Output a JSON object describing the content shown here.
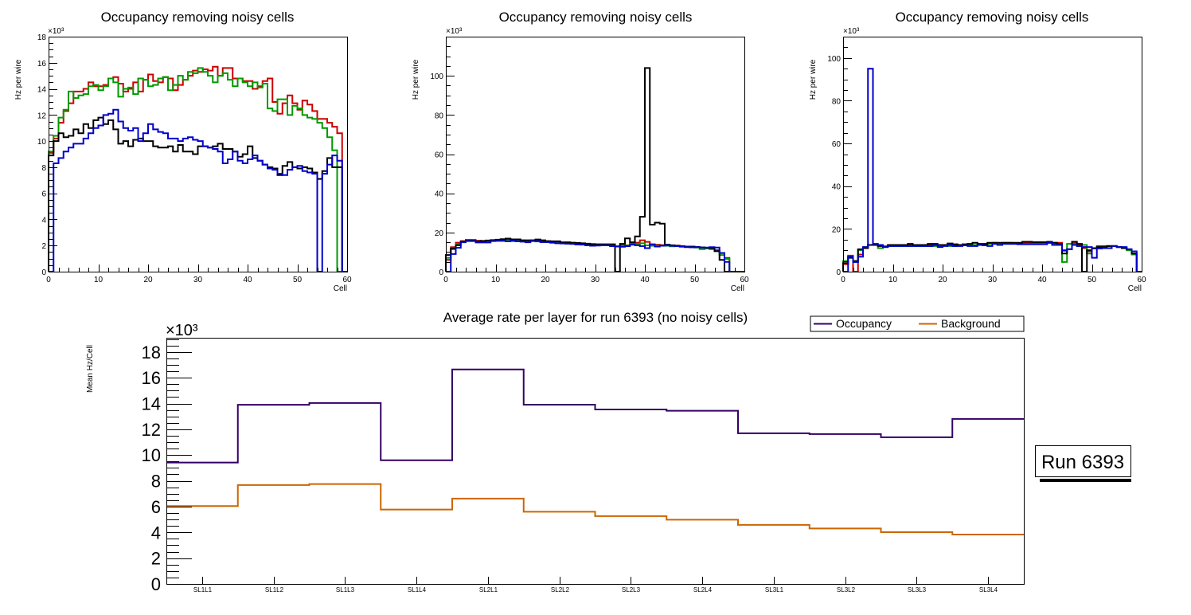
{
  "chart_data": [
    {
      "type": "line",
      "style": "step-histogram",
      "title": "Occupancy removing noisy cells",
      "xlabel": "Cell",
      "ylabel": "Hz per wire",
      "y_multiplier": "×10³",
      "xlim": [
        0,
        60
      ],
      "ylim": [
        0,
        18
      ],
      "x_ticks": [
        "0",
        "10",
        "20",
        "30",
        "40",
        "50",
        "60"
      ],
      "y_ticks": [
        "0",
        "2",
        "4",
        "6",
        "8",
        "10",
        "12",
        "14",
        "16",
        "18"
      ],
      "y_tick_values": [
        0,
        2,
        4,
        6,
        8,
        10,
        12,
        14,
        16,
        18
      ],
      "x_tick_values": [
        0,
        10,
        20,
        30,
        40,
        50,
        60
      ],
      "bins": 60,
      "series": [
        {
          "name": "red",
          "color": "#cc0000",
          "values": [
            9.1,
            10.2,
            11.4,
            12.3,
            12.9,
            13.8,
            13.8,
            14.0,
            14.5,
            14.2,
            14.2,
            14.3,
            14.8,
            14.9,
            14.4,
            13.8,
            14.0,
            14.5,
            13.8,
            14.7,
            15.1,
            14.6,
            14.5,
            14.9,
            14.8,
            13.9,
            14.3,
            14.7,
            15.0,
            15.4,
            15.3,
            15.5,
            15.4,
            15.7,
            15.0,
            15.6,
            15.6,
            14.8,
            14.8,
            14.6,
            14.6,
            14.0,
            14.2,
            14.6,
            14.8,
            13.0,
            12.1,
            12.9,
            13.5,
            12.9,
            12.4,
            13.1,
            12.8,
            12.3,
            11.7,
            11.7,
            11.4,
            11.1,
            10.6,
            0
          ]
        },
        {
          "name": "green",
          "color": "#009900",
          "values": [
            9.2,
            10.4,
            11.8,
            12.4,
            13.8,
            13.3,
            13.5,
            13.6,
            14.2,
            14.3,
            13.9,
            14.2,
            14.8,
            14.5,
            13.4,
            14.0,
            14.1,
            13.6,
            14.8,
            14.7,
            14.2,
            14.3,
            14.8,
            14.9,
            13.9,
            14.3,
            15.0,
            14.7,
            15.3,
            15.2,
            15.6,
            15.3,
            15.0,
            14.5,
            15.0,
            15.2,
            14.7,
            14.2,
            14.8,
            14.5,
            14.2,
            14.5,
            14.1,
            14.4,
            12.5,
            12.3,
            13.2,
            13.2,
            12.0,
            12.7,
            12.5,
            12.0,
            11.8,
            11.7,
            11.4,
            11.0,
            10.3,
            9.3,
            0,
            0
          ]
        },
        {
          "name": "black",
          "color": "#000000",
          "values": [
            8.9,
            10.0,
            10.6,
            10.3,
            10.4,
            10.9,
            10.6,
            11.3,
            11.0,
            11.6,
            11.8,
            11.3,
            11.6,
            10.9,
            9.8,
            10.0,
            9.6,
            10.1,
            10.2,
            10.0,
            10.0,
            9.6,
            9.5,
            9.5,
            9.6,
            9.2,
            9.7,
            9.2,
            9.2,
            9.0,
            9.6,
            9.6,
            9.5,
            9.6,
            9.8,
            9.4,
            9.4,
            9.2,
            8.8,
            9.0,
            9.6,
            8.7,
            8.5,
            8.2,
            8.0,
            7.9,
            7.4,
            8.1,
            8.4,
            8.0,
            7.9,
            8.0,
            7.9,
            7.6,
            7.1,
            7.7,
            8.7,
            8.0,
            8.0,
            0
          ]
        },
        {
          "name": "blue",
          "color": "#0000cc",
          "values": [
            0,
            8.3,
            8.7,
            9.2,
            9.5,
            9.8,
            9.8,
            10.2,
            10.6,
            11.0,
            11.2,
            12.0,
            12.1,
            12.4,
            11.5,
            11.0,
            10.8,
            11.0,
            10.0,
            10.6,
            11.3,
            10.9,
            10.7,
            10.6,
            10.2,
            10.2,
            10.0,
            10.2,
            10.3,
            10.1,
            10.0,
            9.6,
            9.5,
            9.4,
            9.2,
            8.3,
            8.6,
            9.2,
            8.5,
            8.3,
            8.6,
            8.9,
            8.5,
            8.2,
            7.9,
            7.8,
            7.5,
            7.4,
            7.8,
            8.0,
            8.1,
            7.7,
            7.6,
            7.5,
            0,
            7.5,
            8.2,
            8.9,
            8.5,
            0
          ]
        }
      ]
    },
    {
      "type": "line",
      "style": "step-histogram",
      "title": "Occupancy removing noisy cells",
      "xlabel": "Cell",
      "ylabel": "Hz per wire",
      "y_multiplier": "×10³",
      "xlim": [
        0,
        60
      ],
      "ylim": [
        0,
        120
      ],
      "x_ticks": [
        "0",
        "10",
        "20",
        "30",
        "40",
        "50",
        "60"
      ],
      "y_ticks": [
        "0",
        "20",
        "40",
        "60",
        "80",
        "100"
      ],
      "y_tick_values": [
        0,
        20,
        40,
        60,
        80,
        100
      ],
      "x_tick_values": [
        0,
        10,
        20,
        30,
        40,
        50,
        60
      ],
      "bins": 60,
      "series": [
        {
          "name": "red",
          "color": "#cc0000",
          "values": [
            6,
            12.5,
            14.8,
            15.6,
            16.2,
            16.2,
            15.8,
            15.5,
            15.8,
            16.0,
            16.2,
            16.4,
            16.6,
            16.3,
            16.3,
            15.9,
            15.8,
            16.0,
            15.8,
            15.5,
            15.4,
            15.3,
            15.0,
            14.8,
            14.7,
            14.5,
            14.3,
            14.2,
            14.0,
            13.8,
            13.7,
            13.6,
            13.5,
            13.2,
            13.0,
            13.3,
            13.5,
            14.3,
            14.8,
            16.0,
            15.2,
            13.4,
            13.8,
            13.6,
            13.5,
            13.2,
            13.3,
            13.0,
            12.8,
            12.6,
            12.5,
            12.3,
            12.2,
            11.8,
            11.0,
            9.5,
            7.0,
            0,
            0,
            0
          ]
        },
        {
          "name": "green",
          "color": "#009900",
          "values": [
            7,
            11.5,
            14.2,
            15.3,
            15.7,
            15.8,
            15.2,
            15.2,
            15.6,
            15.8,
            16.1,
            16.0,
            15.8,
            15.6,
            15.9,
            15.8,
            15.4,
            15.9,
            15.4,
            15.1,
            15.1,
            14.8,
            14.6,
            14.5,
            14.4,
            14.2,
            14.0,
            13.9,
            13.8,
            13.6,
            13.6,
            13.5,
            13.4,
            13.2,
            13.0,
            13.3,
            13.3,
            14.0,
            14.0,
            14.5,
            13.4,
            13.2,
            13.3,
            13.3,
            13.2,
            12.9,
            13.0,
            12.7,
            12.6,
            12.4,
            12.3,
            11.5,
            11.8,
            11.5,
            10.5,
            8.5,
            6.5,
            0,
            0,
            0
          ]
        },
        {
          "name": "black",
          "color": "#000000",
          "values": [
            8.5,
            11.8,
            13.5,
            15.4,
            15.9,
            15.8,
            15.4,
            15.7,
            15.9,
            16.1,
            16.3,
            16.6,
            16.9,
            16.5,
            16.5,
            16.0,
            16.0,
            16.0,
            16.4,
            16.0,
            15.6,
            15.5,
            15.5,
            15.0,
            15.0,
            14.8,
            14.7,
            14.5,
            14.3,
            14.1,
            14.0,
            14.0,
            14.0,
            14.0,
            0,
            14.2,
            17.0,
            15.0,
            18.0,
            28.0,
            104.0,
            24.0,
            25.0,
            24.5,
            13.8,
            13.5,
            13.2,
            13.0,
            12.8,
            12.8,
            12.6,
            12.4,
            12.2,
            12.0,
            10.5,
            6.0,
            0,
            0,
            0,
            0
          ]
        },
        {
          "name": "blue",
          "color": "#0000cc",
          "values": [
            0,
            9.0,
            12.2,
            15.0,
            15.6,
            15.6,
            14.9,
            14.9,
            14.9,
            15.6,
            15.7,
            15.7,
            15.5,
            15.8,
            15.5,
            15.3,
            15.0,
            15.6,
            15.6,
            15.1,
            15.1,
            14.8,
            14.5,
            14.4,
            14.3,
            14.2,
            13.9,
            13.8,
            13.4,
            13.2,
            13.3,
            13.4,
            13.4,
            13.0,
            12.8,
            12.7,
            13.0,
            13.8,
            13.4,
            13.0,
            12.0,
            14.0,
            12.8,
            13.2,
            13.5,
            13.2,
            13.0,
            12.8,
            12.5,
            12.4,
            12.5,
            12.3,
            12.3,
            12.5,
            12.3,
            9.5,
            5.0,
            0,
            0,
            0
          ]
        }
      ]
    },
    {
      "type": "line",
      "style": "step-histogram",
      "title": "Occupancy removing noisy cells",
      "xlabel": "Cell",
      "ylabel": "Hz per wire",
      "y_multiplier": "×10³",
      "xlim": [
        0,
        60
      ],
      "ylim": [
        0,
        110
      ],
      "x_ticks": [
        "0",
        "10",
        "20",
        "30",
        "40",
        "50",
        "60"
      ],
      "y_ticks": [
        "0",
        "20",
        "40",
        "60",
        "80",
        "100"
      ],
      "y_tick_values": [
        0,
        20,
        40,
        60,
        80,
        100
      ],
      "x_tick_values": [
        0,
        10,
        20,
        30,
        40,
        50,
        60
      ],
      "bins": 60,
      "series": [
        {
          "name": "red",
          "color": "#cc0000",
          "values": [
            3.5,
            7.5,
            0,
            8,
            11,
            12.5,
            12.5,
            12.2,
            12,
            12.5,
            12.5,
            12.5,
            12.5,
            12.5,
            12.5,
            12.5,
            12.5,
            12.5,
            12.5,
            12.5,
            12.5,
            13,
            12.5,
            12.5,
            12.5,
            12.5,
            12.5,
            12.5,
            12.5,
            13.2,
            13.5,
            13,
            13.5,
            13.5,
            13.3,
            13.3,
            13.5,
            13.5,
            13.2,
            13.2,
            13.2,
            13.5,
            13.5,
            13.5,
            9.8,
            10.5,
            13.2,
            12.5,
            11,
            9.5,
            11,
            12,
            12,
            12,
            12,
            11.5,
            11,
            10,
            8.5,
            0
          ]
        },
        {
          "name": "green",
          "color": "#009900",
          "values": [
            5,
            7,
            4.5,
            10,
            11.5,
            12.5,
            12.5,
            11,
            11.8,
            12,
            12,
            12,
            12,
            12,
            12,
            12,
            12,
            12,
            12,
            12,
            12.5,
            12,
            12,
            12.5,
            12.3,
            12.5,
            12.5,
            12.5,
            12.5,
            13,
            13,
            13,
            13,
            13,
            13,
            13,
            13,
            13,
            13,
            13,
            13,
            13.5,
            13,
            13,
            4.5,
            13,
            13,
            12,
            12.5,
            8.5,
            10.8,
            11.5,
            11.5,
            12,
            12,
            11.5,
            11,
            10,
            8,
            0
          ]
        },
        {
          "name": "black",
          "color": "#000000",
          "values": [
            4,
            6.5,
            5,
            10.5,
            11,
            12.5,
            12.5,
            12,
            11.5,
            12.5,
            12.5,
            12.5,
            12.5,
            13,
            12.5,
            12.5,
            12.5,
            13,
            13,
            12.5,
            12.5,
            13.2,
            12.8,
            12.5,
            12.8,
            13,
            13.5,
            13,
            13,
            13.5,
            13.5,
            13.5,
            13.5,
            13.5,
            13.5,
            13.5,
            14,
            14,
            13.8,
            13.8,
            13.8,
            14,
            13.5,
            13,
            8.5,
            10.5,
            14,
            13,
            0,
            10,
            11,
            11.5,
            11.5,
            12,
            12,
            11.5,
            11,
            10.5,
            8.5,
            0
          ]
        },
        {
          "name": "blue",
          "color": "#0000cc",
          "values": [
            0,
            7,
            4.5,
            7,
            11.5,
            95,
            13,
            12.5,
            11.5,
            12,
            12,
            12,
            12,
            12,
            12,
            12,
            12,
            12,
            12.5,
            11.5,
            12,
            12.5,
            12,
            12,
            12.3,
            12,
            12,
            12.5,
            12.3,
            12,
            13,
            12.5,
            13,
            13,
            13,
            12.8,
            12.8,
            12.8,
            12.8,
            12.8,
            12.8,
            13.5,
            12.5,
            12.5,
            10,
            10.5,
            12.5,
            12,
            11.5,
            11.5,
            6.5,
            10.8,
            11,
            11,
            12,
            11.5,
            11.5,
            10.5,
            9.5,
            0
          ]
        }
      ]
    },
    {
      "type": "line",
      "style": "step-histogram",
      "title": "Average rate per layer for run 6393 (no noisy cells)",
      "xlabel": "",
      "ylabel": "Mean Hz/Cell",
      "y_multiplier": "×10³",
      "categories": [
        "SL1L1",
        "SL1L2",
        "SL1L3",
        "SL1L4",
        "SL2L1",
        "SL2L2",
        "SL2L3",
        "SL2L4",
        "SL3L1",
        "SL3L2",
        "SL3L3",
        "SL3L4"
      ],
      "ylim": [
        0,
        19100
      ],
      "y_ticks": [
        "0",
        "2",
        "4",
        "6",
        "8",
        "10",
        "12",
        "14",
        "16",
        "18"
      ],
      "y_tick_values": [
        0,
        2000,
        4000,
        6000,
        8000,
        10000,
        12000,
        14000,
        16000,
        18000
      ],
      "grid": false,
      "legend_placement": "top-right",
      "legend": [
        {
          "label": "Occupancy",
          "color": "#330066"
        },
        {
          "label": "Background",
          "color": "#cc6600"
        }
      ],
      "series": [
        {
          "name": "Occupancy",
          "color": "#330066",
          "values": [
            9420,
            13900,
            14040,
            9600,
            16640,
            13910,
            13540,
            13440,
            11690,
            11630,
            11380,
            12800
          ]
        },
        {
          "name": "Background",
          "color": "#cc6600",
          "values": [
            6040,
            7670,
            7750,
            5770,
            6620,
            5600,
            5260,
            4980,
            4580,
            4300,
            4020,
            3830
          ]
        }
      ],
      "annotation": "Run 6393"
    }
  ]
}
